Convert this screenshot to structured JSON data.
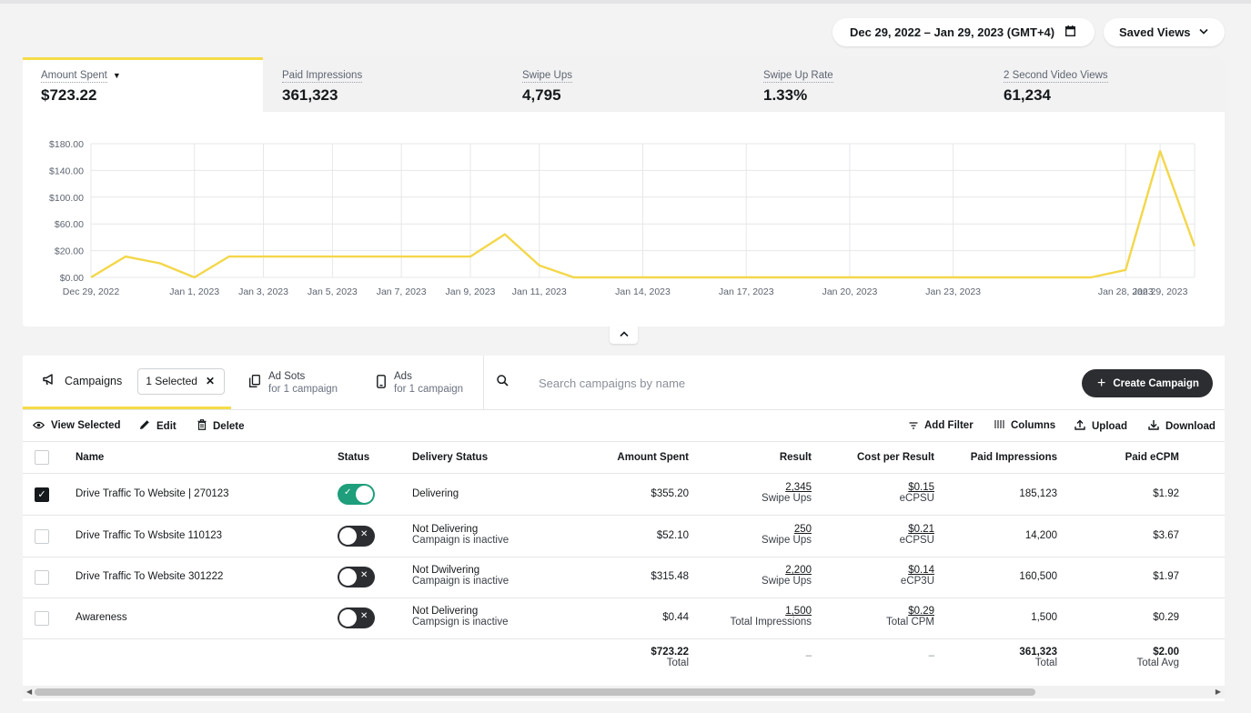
{
  "header": {
    "date_range": "Dec 29, 2022 – Jan 29, 2023 (GMT+4)",
    "saved_views": "Saved Views"
  },
  "metrics": [
    {
      "label": "Amount Spent",
      "value": "$723.22",
      "active": true
    },
    {
      "label": "Paid Impressions",
      "value": "361,323"
    },
    {
      "label": "Swipe Ups",
      "value": "4,795"
    },
    {
      "label": "Swipe Up Rate",
      "value": "1.33%"
    },
    {
      "label": "2 Second Video Views",
      "value": "61,234"
    }
  ],
  "chart_data": {
    "type": "line",
    "series_color": "#f3d74a",
    "y_ticks": [
      "$180.00",
      "$140.00",
      "$100.00",
      "$60.00",
      "$20.00",
      "$0.00"
    ],
    "ylim": [
      0,
      180
    ],
    "x_ticks": [
      "Dec 29, 2022",
      "Jan 1, 2023",
      "Jan 3, 2023",
      "Jan 5, 2023",
      "Jan 7, 2023",
      "Jan 9, 2023",
      "Jan 11, 2023",
      "Jan 14, 2023",
      "Jan 17, 2023",
      "Jan 20, 2023",
      "Jan 23, 2023",
      "Jan 28, 2023",
      "Jan 29, 2023"
    ],
    "x_tick_days": [
      0,
      3,
      5,
      7,
      9,
      11,
      13,
      16,
      19,
      22,
      25,
      30,
      31
    ],
    "grid": true,
    "points": [
      {
        "day": 0,
        "value": 0
      },
      {
        "day": 1,
        "value": 28
      },
      {
        "day": 2,
        "value": 19
      },
      {
        "day": 3,
        "value": 0
      },
      {
        "day": 4,
        "value": 28
      },
      {
        "day": 5,
        "value": 28
      },
      {
        "day": 6,
        "value": 28
      },
      {
        "day": 7,
        "value": 28
      },
      {
        "day": 8,
        "value": 28
      },
      {
        "day": 9,
        "value": 28
      },
      {
        "day": 10,
        "value": 28
      },
      {
        "day": 11,
        "value": 28
      },
      {
        "day": 12,
        "value": 58
      },
      {
        "day": 13,
        "value": 16
      },
      {
        "day": 14,
        "value": 0
      },
      {
        "day": 29,
        "value": 0
      },
      {
        "day": 30,
        "value": 10
      },
      {
        "day": 31,
        "value": 170
      },
      {
        "day": 32,
        "value": 42
      }
    ]
  },
  "collapse_icon": "chevron-up-icon",
  "tabs": {
    "campaigns": "Campaigns",
    "selected_chip": "1 Selected",
    "ad_sets": {
      "title": "Ad Sots",
      "subtitle": "for 1 campaign"
    },
    "ads": {
      "title": "Ads",
      "subtitle": "for 1 campaign"
    }
  },
  "search": {
    "placeholder": "Search campaigns by name"
  },
  "create_button": "Create Campaign",
  "actions": {
    "view_selected": "View Selected",
    "edit": "Edit",
    "delete": "Delete",
    "add_filter": "Add Filter",
    "columns": "Columns",
    "upload": "Upload",
    "download": "Download"
  },
  "table": {
    "headers": {
      "name": "Name",
      "status": "Status",
      "delivery": "Delivery Status",
      "amount": "Amount Spent",
      "result": "Result",
      "cost": "Cost per Result",
      "impressions": "Paid Impressions",
      "ecpm": "Paid eCPM"
    },
    "rows": [
      {
        "checked": true,
        "name": "Drive Traffic To Website | 270123",
        "status_on": true,
        "delivery": "Delivering",
        "delivery_sub": "",
        "amount": "$355.20",
        "result": "2,345",
        "result_sub": "Swipe Ups",
        "cost": "$0.15",
        "cost_sub": "eCPSU",
        "impressions": "185,123",
        "ecpm": "$1.92"
      },
      {
        "checked": false,
        "name": "Drive Traffic To Wsbsite 110123",
        "status_on": false,
        "delivery": "Not Delivering",
        "delivery_sub": "Campaign is inactive",
        "amount": "$52.10",
        "result": "250",
        "result_sub": "Swipe Ups",
        "cost": "$0.21",
        "cost_sub": "eCPSU",
        "impressions": "14,200",
        "ecpm": "$3.67"
      },
      {
        "checked": false,
        "name": "Drive Traffic To Website 301222",
        "status_on": false,
        "delivery": "Not Dwilvering",
        "delivery_sub": "Campaign is inactive",
        "amount": "$315.48",
        "result": "2,200",
        "result_sub": "Swipe Ups",
        "cost": "$0.14",
        "cost_sub": "eCP3U",
        "impressions": "160,500",
        "ecpm": "$1.97"
      },
      {
        "checked": false,
        "name": "Awareness",
        "status_on": false,
        "delivery": "Not Delivering",
        "delivery_sub": "Campsign is inactive",
        "amount": "$0.44",
        "result": "1,500",
        "result_sub": "Total Impressions",
        "cost": "$0.29",
        "cost_sub": "Total CPM",
        "impressions": "1,500",
        "ecpm": "$0.29"
      }
    ],
    "totals": {
      "amount": "$723.22",
      "amount_label": "Total",
      "result": "–",
      "cost": "–",
      "impressions": "361,323",
      "impressions_label": "Total",
      "ecpm": "$2.00",
      "ecpm_label": "Total Avg"
    }
  }
}
